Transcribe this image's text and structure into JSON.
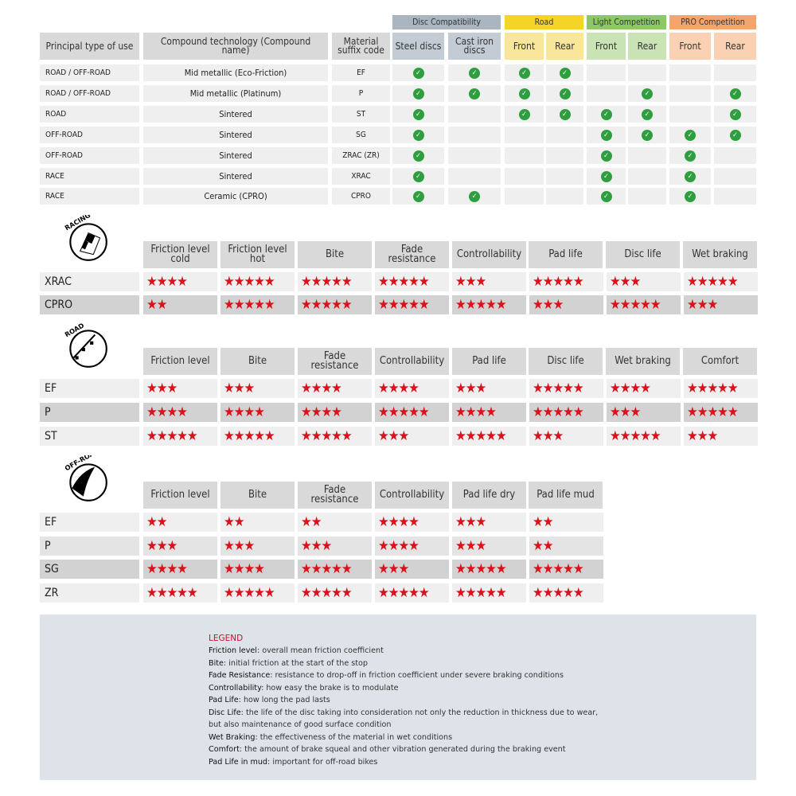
{
  "compat": {
    "groups": [
      {
        "label": "Disc Compatibility",
        "color": "#a9b6c2",
        "span": [
          3,
          4
        ]
      },
      {
        "label": "Road",
        "color": "#f5d327",
        "span": [
          5,
          6
        ]
      },
      {
        "label": "Light Competition",
        "color": "#8cc866",
        "span": [
          7,
          8
        ]
      },
      {
        "label": "PRO Competition",
        "color": "#f4a56e",
        "span": [
          9,
          10
        ]
      }
    ],
    "headers": [
      "Principal type of use",
      "Compound technology (Compound name)",
      "Material suffix code",
      "Steel discs",
      "Cast iron discs",
      "Front",
      "Rear",
      "Front",
      "Rear",
      "Front",
      "Rear"
    ],
    "header_colors": [
      "#d9d9d9",
      "#d9d9d9",
      "#d9d9d9",
      "#c3ccd4",
      "#c3ccd4",
      "#f9e69a",
      "#f9e69a",
      "#c9e3b5",
      "#c9e3b5",
      "#fad1b2",
      "#fad1b2"
    ],
    "rows": [
      {
        "use": "ROAD / OFF-ROAD",
        "compound": "Mid metallic (Eco-Friction)",
        "code": "EF",
        "checks": [
          1,
          1,
          1,
          1,
          0,
          0,
          0,
          0
        ]
      },
      {
        "use": "ROAD / OFF-ROAD",
        "compound": "Mid metallic (Platinum)",
        "code": "P",
        "checks": [
          1,
          1,
          1,
          1,
          0,
          1,
          0,
          1
        ]
      },
      {
        "use": "ROAD",
        "compound": "Sintered",
        "code": "ST",
        "checks": [
          1,
          0,
          1,
          1,
          1,
          1,
          0,
          1
        ]
      },
      {
        "use": "OFF-ROAD",
        "compound": "Sintered",
        "code": "SG",
        "checks": [
          1,
          0,
          0,
          0,
          1,
          1,
          1,
          1
        ]
      },
      {
        "use": "OFF-ROAD",
        "compound": "Sintered",
        "code": "ZRAC (ZR)",
        "checks": [
          1,
          0,
          0,
          0,
          1,
          0,
          1,
          0
        ]
      },
      {
        "use": "RACE",
        "compound": "Sintered",
        "code": "XRAC",
        "checks": [
          1,
          0,
          0,
          0,
          1,
          0,
          1,
          0
        ]
      },
      {
        "use": "RACE",
        "compound": "Ceramic (CPRO)",
        "code": "CPRO",
        "checks": [
          1,
          1,
          0,
          0,
          1,
          0,
          1,
          0
        ]
      }
    ],
    "check_color": "#2e9e3e"
  },
  "ratings": [
    {
      "badge": "RACING",
      "icon": "checkered-flag-icon",
      "top": 303,
      "headers": [
        "Friction level cold",
        "Friction level hot",
        "Bite",
        "Fade resistance",
        "Controllability",
        "Pad life",
        "Disc life",
        "Wet braking"
      ],
      "rows": [
        {
          "code": "XRAC",
          "shade": "light",
          "stars": [
            4,
            5,
            5,
            5,
            3,
            5,
            3,
            5
          ]
        },
        {
          "code": "CPRO",
          "shade": "dark",
          "stars": [
            2,
            5,
            5,
            5,
            5,
            3,
            5,
            3
          ]
        }
      ]
    },
    {
      "badge": "ROAD",
      "icon": "road-icon",
      "top": 437,
      "headers": [
        "Friction level",
        "Bite",
        "Fade resistance",
        "Controllability",
        "Pad life",
        "Disc life",
        "Wet braking",
        "Comfort"
      ],
      "rows": [
        {
          "code": "EF",
          "shade": "light",
          "stars": [
            3,
            3,
            4,
            4,
            3,
            5,
            4,
            5
          ]
        },
        {
          "code": "P",
          "shade": "dark",
          "stars": [
            4,
            4,
            4,
            5,
            4,
            5,
            3,
            5
          ]
        },
        {
          "code": "ST",
          "shade": "light",
          "stars": [
            5,
            5,
            5,
            3,
            5,
            3,
            5,
            3
          ]
        }
      ]
    },
    {
      "badge": "OFF-ROAD",
      "icon": "off-road-icon",
      "top": 605,
      "headers": [
        "Friction level",
        "Bite",
        "Fade resistance",
        "Controllability",
        "Pad life dry",
        "Pad life mud"
      ],
      "rows": [
        {
          "code": "EF",
          "shade": "light",
          "stars": [
            2,
            2,
            2,
            4,
            3,
            2
          ]
        },
        {
          "code": "P",
          "shade": "mid",
          "stars": [
            3,
            3,
            3,
            4,
            3,
            2
          ]
        },
        {
          "code": "SG",
          "shade": "dark",
          "stars": [
            4,
            4,
            5,
            3,
            5,
            5
          ]
        },
        {
          "code": "ZR",
          "shade": "light",
          "stars": [
            5,
            5,
            5,
            5,
            5,
            5
          ]
        }
      ]
    }
  ],
  "star_color": "#d9121c",
  "legend": {
    "title": "LEGEND",
    "items": [
      {
        "term": "Friction level",
        "desc": ": overall mean friction coefficient"
      },
      {
        "term": "Bite",
        "desc": ": initial friction at the start of the stop"
      },
      {
        "term": "Fade Resistance",
        "desc": ": resistance to drop-off in friction coefficient under severe braking conditions"
      },
      {
        "term": "Controllability",
        "desc": ": how easy the brake is to modulate"
      },
      {
        "term": "Pad Life",
        "desc": ": how long the pad lasts"
      },
      {
        "term": "Disc Life",
        "desc": ": the life of the disc taking into consideration not only the reduction in thickness due to wear,"
      },
      {
        "term": "",
        "desc": "but also maintenance of good surface condition"
      },
      {
        "term": "Wet Braking",
        "desc": ": the effectiveness of the material in wet conditions"
      },
      {
        "term": "Comfort",
        "desc": ": the amount of brake squeal and other vibration generated during the braking event"
      },
      {
        "term": "Pad Life in mud",
        "desc": ": important for off-road bikes"
      }
    ]
  }
}
